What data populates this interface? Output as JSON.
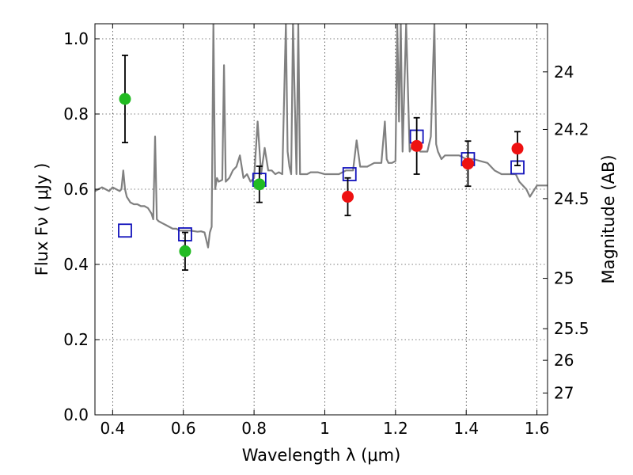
{
  "chart_data": {
    "type": "scatter",
    "xlabel": "Wavelength  λ (μm)",
    "ylabel": "Flux  Fν  ( μJy )",
    "y2label": "Magnitude (AB)",
    "xlim": [
      0.35,
      1.63
    ],
    "ylim": [
      0.0,
      1.04
    ],
    "grid": true,
    "x_ticks": [
      0.4,
      0.6,
      0.8,
      1.0,
      1.2,
      1.4,
      1.6
    ],
    "x_tick_labels": [
      "0.4",
      "0.6",
      "0.8",
      "1",
      "1.2",
      "1.4",
      "1.6"
    ],
    "y_ticks": [
      0.0,
      0.2,
      0.4,
      0.6,
      0.8,
      1.0
    ],
    "y_tick_labels": [
      "0.0",
      "0.2",
      "0.4",
      "0.6",
      "0.8",
      "1.0"
    ],
    "mag_ticks": [
      {
        "label": "24",
        "flux": 0.912
      },
      {
        "label": "24.2",
        "flux": 0.759
      },
      {
        "label": "24.5",
        "flux": 0.575
      },
      {
        "label": "25",
        "flux": 0.363
      },
      {
        "label": "25.5",
        "flux": 0.229
      },
      {
        "label": "26",
        "flux": 0.145
      },
      {
        "label": "27",
        "flux": 0.058
      }
    ],
    "series": [
      {
        "marker": "circle",
        "color": "#22bb22",
        "points": [
          {
            "x": 0.435,
            "y": 0.84,
            "err": 0.116
          },
          {
            "x": 0.605,
            "y": 0.435,
            "err": 0.05
          },
          {
            "x": 0.815,
            "y": 0.613,
            "err": 0.048
          }
        ]
      },
      {
        "marker": "circle",
        "color": "#ee1111",
        "points": [
          {
            "x": 1.065,
            "y": 0.58,
            "err": 0.05
          },
          {
            "x": 1.26,
            "y": 0.715,
            "err": 0.075
          },
          {
            "x": 1.405,
            "y": 0.668,
            "err": 0.06
          },
          {
            "x": 1.545,
            "y": 0.708,
            "err": 0.045
          }
        ]
      },
      {
        "marker": "open-square",
        "color": "#1111bb",
        "points": [
          {
            "x": 0.435,
            "y": 0.49
          },
          {
            "x": 0.605,
            "y": 0.48
          },
          {
            "x": 0.815,
            "y": 0.625
          },
          {
            "x": 1.07,
            "y": 0.64
          },
          {
            "x": 1.26,
            "y": 0.74
          },
          {
            "x": 1.405,
            "y": 0.68
          },
          {
            "x": 1.545,
            "y": 0.658
          }
        ]
      }
    ],
    "model_spectrum": {
      "color": "#808080",
      "x": [
        0.35,
        0.36,
        0.37,
        0.38,
        0.39,
        0.4,
        0.41,
        0.42,
        0.425,
        0.43,
        0.435,
        0.44,
        0.45,
        0.46,
        0.47,
        0.48,
        0.49,
        0.5,
        0.51,
        0.515,
        0.52,
        0.525,
        0.53,
        0.54,
        0.55,
        0.56,
        0.57,
        0.58,
        0.59,
        0.6,
        0.62,
        0.64,
        0.65,
        0.66,
        0.67,
        0.675,
        0.68,
        0.685,
        0.69,
        0.695,
        0.7,
        0.71,
        0.715,
        0.72,
        0.73,
        0.74,
        0.75,
        0.76,
        0.77,
        0.78,
        0.79,
        0.8,
        0.81,
        0.82,
        0.83,
        0.84,
        0.85,
        0.86,
        0.87,
        0.88,
        0.89,
        0.895,
        0.9,
        0.905,
        0.91,
        0.92,
        0.925,
        0.93,
        0.94,
        0.95,
        0.96,
        0.98,
        1.0,
        1.02,
        1.04,
        1.06,
        1.08,
        1.09,
        1.1,
        1.12,
        1.14,
        1.16,
        1.17,
        1.175,
        1.18,
        1.19,
        1.2,
        1.205,
        1.21,
        1.215,
        1.22,
        1.23,
        1.24,
        1.25,
        1.26,
        1.27,
        1.28,
        1.29,
        1.3,
        1.31,
        1.315,
        1.32,
        1.33,
        1.34,
        1.36,
        1.38,
        1.4,
        1.42,
        1.44,
        1.46,
        1.48,
        1.5,
        1.52,
        1.54,
        1.55,
        1.56,
        1.57,
        1.58,
        1.6,
        1.62,
        1.63
      ],
      "y": [
        0.595,
        0.6,
        0.605,
        0.6,
        0.595,
        0.605,
        0.6,
        0.595,
        0.6,
        0.65,
        0.6,
        0.58,
        0.565,
        0.56,
        0.56,
        0.555,
        0.555,
        0.55,
        0.535,
        0.52,
        0.74,
        0.52,
        0.515,
        0.51,
        0.505,
        0.5,
        0.495,
        0.495,
        0.49,
        0.49,
        0.49,
        0.487,
        0.488,
        0.485,
        0.445,
        0.485,
        0.5,
        1.04,
        0.6,
        0.63,
        0.62,
        0.625,
        0.93,
        0.62,
        0.63,
        0.65,
        0.66,
        0.69,
        0.63,
        0.64,
        0.62,
        0.63,
        0.78,
        0.64,
        0.71,
        0.65,
        0.65,
        0.64,
        0.645,
        0.64,
        1.04,
        0.7,
        0.66,
        0.64,
        1.04,
        0.64,
        1.04,
        0.64,
        0.64,
        0.64,
        0.645,
        0.645,
        0.64,
        0.64,
        0.64,
        0.65,
        0.65,
        0.73,
        0.66,
        0.66,
        0.67,
        0.67,
        0.78,
        0.68,
        0.67,
        0.67,
        0.675,
        1.04,
        0.78,
        1.04,
        0.7,
        1.04,
        0.7,
        0.72,
        0.71,
        0.7,
        0.7,
        0.7,
        0.74,
        1.04,
        0.72,
        0.7,
        0.68,
        0.69,
        0.69,
        0.69,
        0.68,
        0.68,
        0.675,
        0.67,
        0.65,
        0.64,
        0.64,
        0.64,
        0.62,
        0.61,
        0.6,
        0.58,
        0.61,
        0.61,
        0.61
      ]
    }
  }
}
